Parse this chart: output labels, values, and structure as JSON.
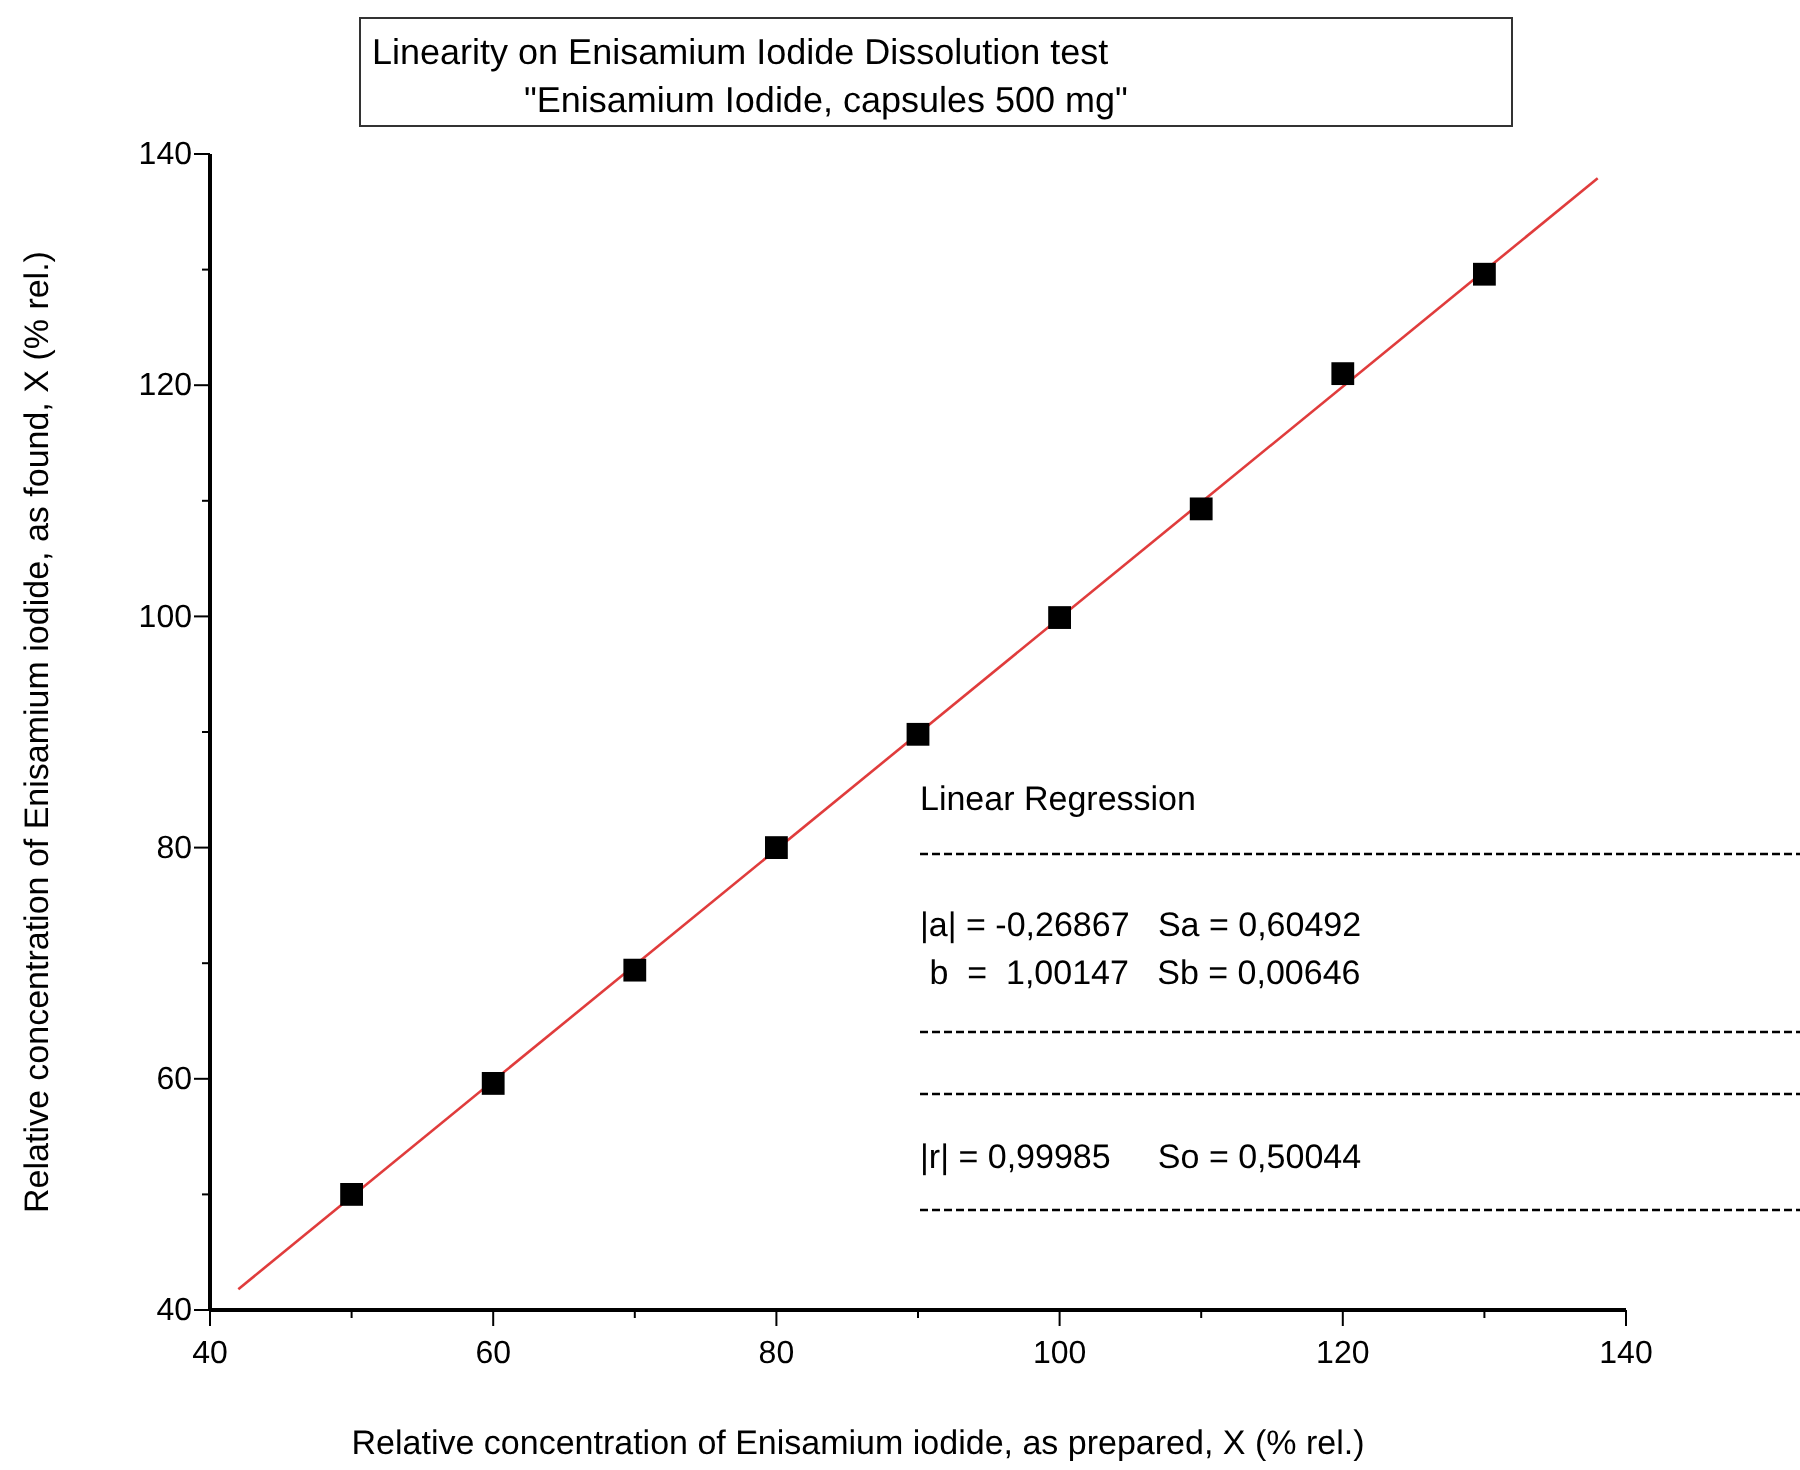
{
  "chart_data": {
    "type": "scatter",
    "title": "Linearity on Enisamium Iodide Dissolution test",
    "subtitle": "\"Enisamium Iodide, capsules 500 mg\"",
    "xlabel": "Relative concentration of Enisamium iodide, as prepared, X (% rel.)",
    "ylabel": "Relative concentration of Enisamium iodide, as found, X (% rel.)",
    "x": [
      50,
      60,
      70,
      80,
      90,
      100,
      110,
      120,
      130
    ],
    "series": [
      {
        "color": "#000000",
        "marker": "square",
        "values": [
          50.0,
          59.6,
          69.4,
          80.0,
          89.8,
          99.9,
          109.3,
          121.0,
          129.6
        ]
      },
      {
        "type": "line",
        "color": "#e03c3c",
        "marker": "none",
        "x": [
          42,
          138
        ],
        "values": [
          41.8,
          137.9
        ]
      }
    ],
    "xlim": [
      40,
      140
    ],
    "ylim": [
      40,
      140
    ],
    "xticks": [
      40,
      {
        "value": 50,
        "label": null
      },
      60,
      {
        "value": 70,
        "label": null
      },
      80,
      {
        "value": 90,
        "label": null
      },
      100,
      {
        "value": 110,
        "label": null
      },
      120,
      {
        "value": 130,
        "label": null
      },
      140
    ],
    "yticks": [
      40,
      {
        "value": 50,
        "label": null
      },
      60,
      {
        "value": 70,
        "label": null
      },
      80,
      {
        "value": 90,
        "label": null
      },
      100,
      {
        "value": 110,
        "label": null
      },
      120,
      {
        "value": 130,
        "label": null
      },
      140
    ],
    "grid": false,
    "annotations": [
      "Linear Regression",
      "|a| = -0,26867   Sa = 0,60492",
      " b  =  1,00147   Sb = 0,00646",
      "|r| = 0,99985     So = 0,50044"
    ]
  }
}
